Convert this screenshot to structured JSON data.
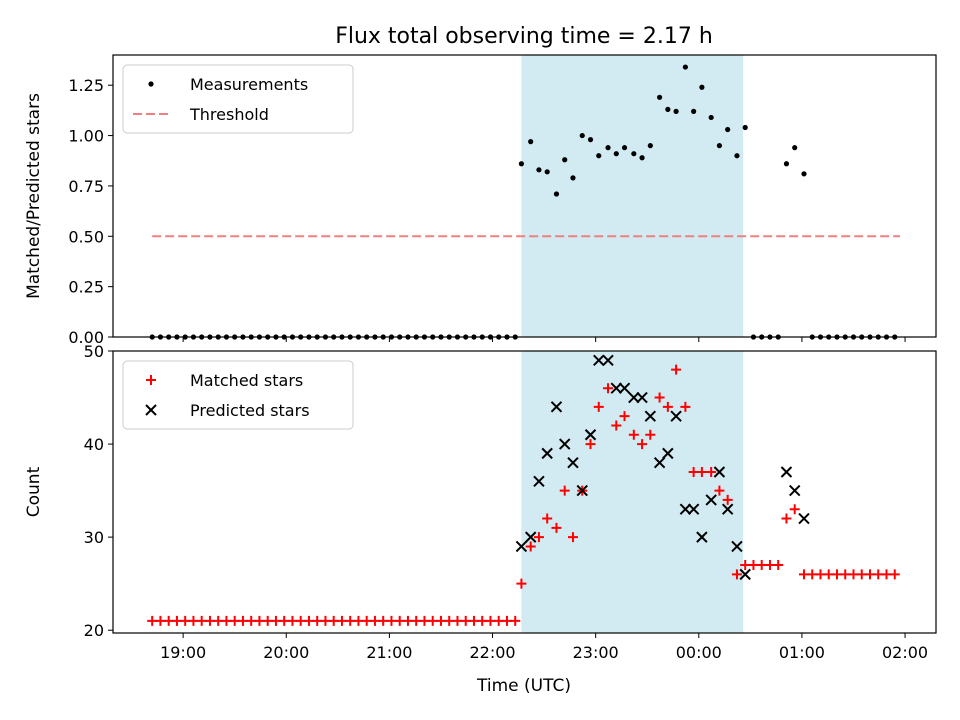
{
  "figure": {
    "title": "Flux total observing time = 2.17 h",
    "xlabel": "Time (UTC)"
  },
  "x_tick_labels": [
    "19:00",
    "20:00",
    "21:00",
    "22:00",
    "23:00",
    "00:00",
    "01:00",
    "02:00"
  ],
  "colors": {
    "measurements": "#000000",
    "threshold": "#f08080",
    "matched": "#ff0000",
    "predicted": "#000000",
    "observing_span": "#add8e6"
  },
  "chart_data": [
    {
      "type": "scatter",
      "panel": "top",
      "ylabel": "Matched/Predicted stars",
      "ylim": [
        0,
        1.4
      ],
      "yticks": [
        0,
        0.25,
        0.5,
        0.75,
        1.0,
        1.25
      ],
      "ytick_labels": [
        "0.00",
        "0.25",
        "0.50",
        "0.75",
        "1.00",
        "1.25"
      ],
      "x_unit": "hours since 00:00 UTC",
      "xlim": [
        -5.68,
        2.3
      ],
      "highlight_span": [
        -1.72,
        0.43
      ],
      "legend": {
        "location": "upper left",
        "entries": [
          "Measurements",
          "Threshold"
        ]
      },
      "series": [
        {
          "name": "Measurements",
          "marker": "dot",
          "points": [
            [
              -5.3,
              0
            ],
            [
              -5.22,
              0
            ],
            [
              -5.14,
              0
            ],
            [
              -5.06,
              0
            ],
            [
              -4.98,
              0
            ],
            [
              -4.9,
              0
            ],
            [
              -4.82,
              0
            ],
            [
              -4.74,
              0
            ],
            [
              -4.66,
              0
            ],
            [
              -4.58,
              0
            ],
            [
              -4.5,
              0
            ],
            [
              -4.42,
              0
            ],
            [
              -4.34,
              0
            ],
            [
              -4.26,
              0
            ],
            [
              -4.18,
              0
            ],
            [
              -4.1,
              0
            ],
            [
              -4.02,
              0
            ],
            [
              -3.94,
              0
            ],
            [
              -3.86,
              0
            ],
            [
              -3.78,
              0
            ],
            [
              -3.7,
              0
            ],
            [
              -3.62,
              0
            ],
            [
              -3.54,
              0
            ],
            [
              -3.46,
              0
            ],
            [
              -3.38,
              0
            ],
            [
              -3.3,
              0
            ],
            [
              -3.22,
              0
            ],
            [
              -3.14,
              0
            ],
            [
              -3.06,
              0
            ],
            [
              -2.98,
              0
            ],
            [
              -2.9,
              0
            ],
            [
              -2.82,
              0
            ],
            [
              -2.74,
              0
            ],
            [
              -2.66,
              0
            ],
            [
              -2.58,
              0
            ],
            [
              -2.5,
              0
            ],
            [
              -2.42,
              0
            ],
            [
              -2.34,
              0
            ],
            [
              -2.26,
              0
            ],
            [
              -2.18,
              0
            ],
            [
              -2.1,
              0
            ],
            [
              -2.02,
              0
            ],
            [
              -1.94,
              0
            ],
            [
              -1.86,
              0
            ],
            [
              -1.78,
              0
            ],
            [
              -1.72,
              0.86
            ],
            [
              -1.63,
              0.97
            ],
            [
              -1.55,
              0.83
            ],
            [
              -1.47,
              0.82
            ],
            [
              -1.38,
              0.71
            ],
            [
              -1.3,
              0.88
            ],
            [
              -1.22,
              0.79
            ],
            [
              -1.13,
              1.0
            ],
            [
              -1.05,
              0.98
            ],
            [
              -0.97,
              0.9
            ],
            [
              -0.88,
              0.94
            ],
            [
              -0.8,
              0.91
            ],
            [
              -0.72,
              0.94
            ],
            [
              -0.63,
              0.91
            ],
            [
              -0.55,
              0.89
            ],
            [
              -0.47,
              0.95
            ],
            [
              -0.38,
              1.19
            ],
            [
              -0.3,
              1.13
            ],
            [
              -0.22,
              1.12
            ],
            [
              -0.13,
              1.34
            ],
            [
              -0.05,
              1.12
            ],
            [
              0.03,
              1.24
            ],
            [
              0.12,
              1.09
            ],
            [
              0.2,
              0.95
            ],
            [
              0.28,
              1.03
            ],
            [
              0.37,
              0.9
            ],
            [
              0.45,
              1.04
            ],
            [
              0.53,
              0
            ],
            [
              0.61,
              0
            ],
            [
              0.69,
              0
            ],
            [
              0.77,
              0
            ],
            [
              0.85,
              0.86
            ],
            [
              0.93,
              0.94
            ],
            [
              1.02,
              0.81
            ],
            [
              1.1,
              0
            ],
            [
              1.18,
              0
            ],
            [
              1.26,
              0
            ],
            [
              1.34,
              0
            ],
            [
              1.42,
              0
            ],
            [
              1.5,
              0
            ],
            [
              1.58,
              0
            ],
            [
              1.66,
              0
            ],
            [
              1.74,
              0
            ],
            [
              1.82,
              0
            ],
            [
              1.9,
              0
            ]
          ]
        },
        {
          "name": "Threshold",
          "marker": "dashed-line",
          "points": [
            [
              -5.3,
              0.5
            ],
            [
              1.95,
              0.5
            ]
          ]
        }
      ]
    },
    {
      "type": "scatter",
      "panel": "bottom",
      "ylabel": "Count",
      "ylim": [
        19.7,
        50
      ],
      "yticks": [
        20,
        30,
        40,
        50
      ],
      "ytick_labels": [
        "20",
        "30",
        "40",
        "50"
      ],
      "x_unit": "hours since 00:00 UTC",
      "xlim": [
        -5.68,
        2.3
      ],
      "highlight_span": [
        -1.72,
        0.43
      ],
      "legend": {
        "location": "upper left",
        "entries": [
          "Matched stars",
          "Predicted stars"
        ]
      },
      "series": [
        {
          "name": "Matched stars",
          "marker": "plus",
          "points": [
            [
              -5.3,
              21
            ],
            [
              -5.22,
              21
            ],
            [
              -5.14,
              21
            ],
            [
              -5.06,
              21
            ],
            [
              -4.98,
              21
            ],
            [
              -4.9,
              21
            ],
            [
              -4.82,
              21
            ],
            [
              -4.74,
              21
            ],
            [
              -4.66,
              21
            ],
            [
              -4.58,
              21
            ],
            [
              -4.5,
              21
            ],
            [
              -4.42,
              21
            ],
            [
              -4.34,
              21
            ],
            [
              -4.26,
              21
            ],
            [
              -4.18,
              21
            ],
            [
              -4.1,
              21
            ],
            [
              -4.02,
              21
            ],
            [
              -3.94,
              21
            ],
            [
              -3.86,
              21
            ],
            [
              -3.78,
              21
            ],
            [
              -3.7,
              21
            ],
            [
              -3.62,
              21
            ],
            [
              -3.54,
              21
            ],
            [
              -3.46,
              21
            ],
            [
              -3.38,
              21
            ],
            [
              -3.3,
              21
            ],
            [
              -3.22,
              21
            ],
            [
              -3.14,
              21
            ],
            [
              -3.06,
              21
            ],
            [
              -2.98,
              21
            ],
            [
              -2.9,
              21
            ],
            [
              -2.82,
              21
            ],
            [
              -2.74,
              21
            ],
            [
              -2.66,
              21
            ],
            [
              -2.58,
              21
            ],
            [
              -2.5,
              21
            ],
            [
              -2.42,
              21
            ],
            [
              -2.34,
              21
            ],
            [
              -2.26,
              21
            ],
            [
              -2.18,
              21
            ],
            [
              -2.1,
              21
            ],
            [
              -2.02,
              21
            ],
            [
              -1.94,
              21
            ],
            [
              -1.86,
              21
            ],
            [
              -1.78,
              21
            ],
            [
              -1.72,
              25
            ],
            [
              -1.63,
              29
            ],
            [
              -1.55,
              30
            ],
            [
              -1.47,
              32
            ],
            [
              -1.38,
              31
            ],
            [
              -1.3,
              35
            ],
            [
              -1.22,
              30
            ],
            [
              -1.13,
              35
            ],
            [
              -1.05,
              40
            ],
            [
              -0.97,
              44
            ],
            [
              -0.88,
              46
            ],
            [
              -0.8,
              42
            ],
            [
              -0.72,
              43
            ],
            [
              -0.63,
              41
            ],
            [
              -0.55,
              40
            ],
            [
              -0.47,
              41
            ],
            [
              -0.38,
              45
            ],
            [
              -0.3,
              44
            ],
            [
              -0.22,
              48
            ],
            [
              -0.13,
              44
            ],
            [
              -0.05,
              37
            ],
            [
              0.03,
              37
            ],
            [
              0.12,
              37
            ],
            [
              0.2,
              35
            ],
            [
              0.28,
              34
            ],
            [
              0.37,
              26
            ],
            [
              0.45,
              27
            ],
            [
              0.53,
              27
            ],
            [
              0.61,
              27
            ],
            [
              0.69,
              27
            ],
            [
              0.77,
              27
            ],
            [
              0.85,
              32
            ],
            [
              0.93,
              33
            ],
            [
              1.02,
              26
            ],
            [
              1.1,
              26
            ],
            [
              1.18,
              26
            ],
            [
              1.26,
              26
            ],
            [
              1.34,
              26
            ],
            [
              1.42,
              26
            ],
            [
              1.5,
              26
            ],
            [
              1.58,
              26
            ],
            [
              1.66,
              26
            ],
            [
              1.74,
              26
            ],
            [
              1.82,
              26
            ],
            [
              1.9,
              26
            ]
          ]
        },
        {
          "name": "Predicted stars",
          "marker": "x",
          "points": [
            [
              -1.72,
              29
            ],
            [
              -1.63,
              30
            ],
            [
              -1.55,
              36
            ],
            [
              -1.47,
              39
            ],
            [
              -1.38,
              44
            ],
            [
              -1.3,
              40
            ],
            [
              -1.22,
              38
            ],
            [
              -1.13,
              35
            ],
            [
              -1.05,
              41
            ],
            [
              -0.97,
              49
            ],
            [
              -0.88,
              49
            ],
            [
              -0.8,
              46
            ],
            [
              -0.72,
              46
            ],
            [
              -0.63,
              45
            ],
            [
              -0.55,
              45
            ],
            [
              -0.47,
              43
            ],
            [
              -0.38,
              38
            ],
            [
              -0.3,
              39
            ],
            [
              -0.22,
              43
            ],
            [
              -0.13,
              33
            ],
            [
              -0.05,
              33
            ],
            [
              0.03,
              30
            ],
            [
              0.12,
              34
            ],
            [
              0.2,
              37
            ],
            [
              0.28,
              33
            ],
            [
              0.37,
              29
            ],
            [
              0.45,
              26
            ],
            [
              0.85,
              37
            ],
            [
              0.93,
              35
            ],
            [
              1.02,
              32
            ]
          ]
        }
      ]
    }
  ]
}
